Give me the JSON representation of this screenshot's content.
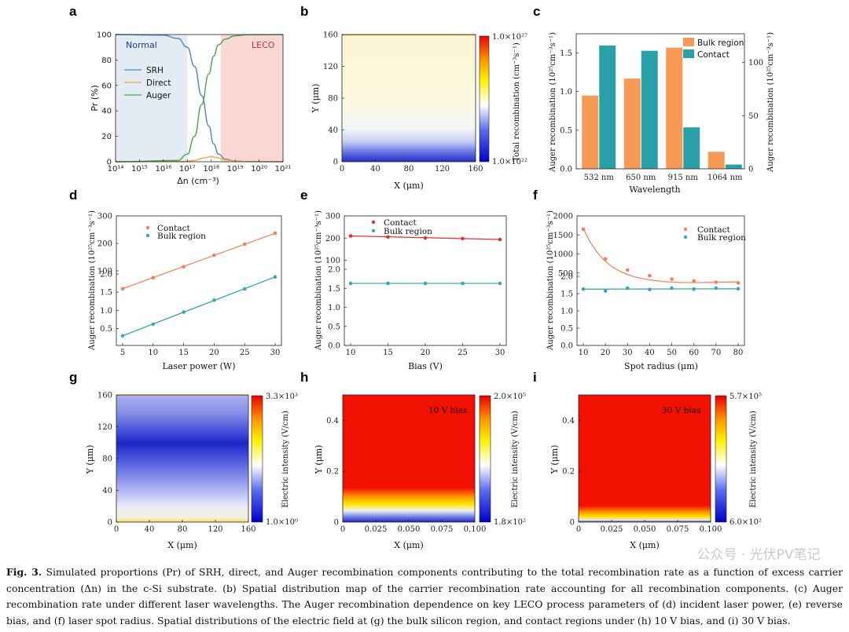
{
  "caption": {
    "label": "Fig. 3.",
    "text": "Simulated proportions (Pr) of SRH, direct, and Auger recombination components contributing to the total recombination rate as a function of excess carrier concentration (Δn) in the c-Si substrate. (b) Spatial distribution map of the carrier recombination rate accounting for all recombination components. (c) Auger recombination rate under different laser wavelengths. The Auger recombination dependence on key LECO process parameters of (d) incident laser power, (e) reverse bias, and (f) laser spot radius. Spatial distributions of the electric field at (g) the bulk silicon region, and contact regions under (h) 10 V bias, and (i) 30 V bias."
  },
  "watermark": "公众号 · 光伏PV笔记",
  "colors": {
    "srh": "#4a86c8",
    "direct": "#f5a04a",
    "auger": "#4aa84a",
    "bulk": "#f79a55",
    "contact": "#2aa0a8",
    "red": "#e53030",
    "normal_bg": "#e3ebf3",
    "leco_bg": "#fad7d3"
  },
  "chart_data": [
    {
      "panel": "a",
      "type": "line",
      "xlabel": "Δn (cm⁻³)",
      "ylabel": "Pr (%)",
      "xscale": "log",
      "xlim_exp": [
        14,
        21
      ],
      "ylim": [
        0,
        100
      ],
      "xtick_labels": [
        "10¹⁴",
        "10¹⁵",
        "10¹⁶",
        "10¹⁷",
        "10¹⁸",
        "10¹⁹",
        "10²⁰",
        "10²¹"
      ],
      "ytick_labels": [
        "0",
        "20",
        "40",
        "60",
        "80",
        "100"
      ],
      "region_labels": {
        "normal": "Normal",
        "leco": "LECO"
      },
      "regions": [
        {
          "name": "Normal",
          "from_exp": 14,
          "to_exp": 17
        },
        {
          "name": "LECO",
          "from_exp": 18.4,
          "to_exp": 21
        }
      ],
      "series": [
        {
          "name": "SRH",
          "log_x": [
            14,
            16,
            16.6,
            17,
            17.3,
            17.6,
            17.9,
            18.1,
            18.3,
            18.6,
            19,
            19.5,
            21
          ],
          "values": [
            100,
            99.5,
            97,
            90,
            75,
            52,
            28,
            14,
            6,
            2,
            0.5,
            0.1,
            0
          ]
        },
        {
          "name": "Direct",
          "log_x": [
            14,
            16.8,
            17.3,
            17.7,
            18,
            18.3,
            18.6,
            19,
            19.5,
            21
          ],
          "values": [
            0,
            0.2,
            1,
            3,
            4,
            3,
            1.5,
            0.5,
            0.1,
            0
          ]
        },
        {
          "name": "Auger",
          "log_x": [
            14,
            16.6,
            17,
            17.3,
            17.6,
            17.9,
            18.1,
            18.3,
            18.6,
            19,
            19.5,
            21
          ],
          "values": [
            0,
            1,
            6,
            20,
            45,
            69,
            83,
            92,
            96.5,
            99,
            99.8,
            100
          ]
        }
      ]
    },
    {
      "panel": "b",
      "type": "heatmap",
      "xlabel": "X (μm)",
      "ylabel": "Y (μm)",
      "xtick_labels": [
        "0",
        "40",
        "80",
        "120",
        "160"
      ],
      "ytick_labels": [
        "0",
        "40",
        "80",
        "120",
        "160"
      ],
      "colorbar": {
        "max_label": "1.0×10²⁷",
        "min_label": "1.0×10²²",
        "label": "Total recombination (cm⁻³s⁻¹)"
      }
    },
    {
      "panel": "c",
      "type": "bar",
      "xlabel": "Wavelength",
      "categories": [
        "532 nm",
        "650 nm",
        "915 nm",
        "1064 nm"
      ],
      "ylabel_left": "Auger recombination (10²⁵cm⁻³s⁻¹)",
      "ylabel_right": "Auger recombination (10²⁵cm⁻³s⁻¹)",
      "ylim_left": [
        0,
        1.75
      ],
      "ylim_right": [
        0,
        127
      ],
      "ytick_labels_left": [
        "0.0",
        "0.5",
        "1.0",
        "1.5"
      ],
      "ytick_labels_right": [
        "0",
        "50",
        "100"
      ],
      "series": [
        {
          "name": "Bulk region",
          "axis": "left",
          "values": [
            0.95,
            1.17,
            1.57,
            0.22
          ]
        },
        {
          "name": "Contact",
          "axis": "right",
          "values": [
            116,
            111,
            39,
            4
          ]
        }
      ]
    },
    {
      "panel": "d",
      "type": "scatter",
      "xlabel": "Laser power (W)",
      "ylabel": "Auger recombination (10²⁵cm⁻³s⁻¹)",
      "xtick_labels": [
        "5",
        "10",
        "15",
        "20",
        "25",
        "30"
      ],
      "ytick_labels": [
        "0.5",
        "1.0",
        "1.5",
        "2.0",
        "100",
        "200",
        "300"
      ],
      "x": [
        5,
        10,
        15,
        20,
        25,
        30
      ],
      "series": [
        {
          "name": "Contact",
          "values": [
            35,
            75,
            115,
            157,
            197,
            237
          ]
        },
        {
          "name": "Bulk region",
          "values": [
            0.3,
            0.62,
            0.95,
            1.28,
            1.59,
            1.92
          ]
        }
      ]
    },
    {
      "panel": "e",
      "type": "scatter",
      "xlabel": "Bias (V)",
      "ylabel": "Auger recombination (10²⁵cm⁻³s⁻¹)",
      "xtick_labels": [
        "10",
        "15",
        "20",
        "25",
        "30"
      ],
      "ytick_labels": [
        "0.0",
        "0.5",
        "1.0",
        "1.5",
        "2.0",
        "100",
        "200",
        "300"
      ],
      "x": [
        10,
        15,
        20,
        25,
        30
      ],
      "series": [
        {
          "name": "Contact",
          "values": [
            210,
            205,
            201,
            198,
            194
          ]
        },
        {
          "name": "Bulk region",
          "values": [
            1.63,
            1.63,
            1.63,
            1.63,
            1.63
          ]
        }
      ]
    },
    {
      "panel": "f",
      "type": "scatter",
      "xlabel": "Spot radius (μm)",
      "ylabel": "Auger recombination (10²⁵cm⁻³s⁻¹)",
      "xtick_labels": [
        "10",
        "20",
        "30",
        "40",
        "50",
        "60",
        "70",
        "80"
      ],
      "ytick_labels": [
        "0.0",
        "0.5",
        "1.0",
        "1.5",
        "2.0",
        "500",
        "1000",
        "1500",
        "2000"
      ],
      "x": [
        10,
        20,
        30,
        40,
        50,
        60,
        70,
        80
      ],
      "series": [
        {
          "name": "Contact",
          "values": [
            1650,
            870,
            580,
            430,
            340,
            290,
            260,
            240
          ]
        },
        {
          "name": "Bulk region",
          "values": [
            1.63,
            1.58,
            1.66,
            1.62,
            1.66,
            1.63,
            1.66,
            1.64
          ]
        }
      ]
    },
    {
      "panel": "g",
      "type": "heatmap",
      "xlabel": "X (μm)",
      "ylabel": "Y (μm)",
      "xtick_labels": [
        "0",
        "40",
        "80",
        "120",
        "160"
      ],
      "ytick_labels": [
        "0",
        "40",
        "80",
        "120",
        "160"
      ],
      "colorbar": {
        "max_label": "3.3×10³",
        "min_label": "1.0×10⁰",
        "label": "Electric intensity (V/cm)"
      }
    },
    {
      "panel": "h",
      "type": "heatmap",
      "annotation": "10 V bias",
      "xlabel": "X (μm)",
      "ylabel": "Y (μm)",
      "xtick_labels": [
        "0",
        "0.025",
        "0.050",
        "0.075",
        "0.100"
      ],
      "ytick_labels": [
        "0",
        "0.2",
        "0.4"
      ],
      "colorbar": {
        "max_label": "2.0×10⁵",
        "min_label": "1.8×10²",
        "label": "Electric intensity (V/cm)"
      }
    },
    {
      "panel": "i",
      "type": "heatmap",
      "annotation": "30 V bias",
      "xlabel": "X (μm)",
      "ylabel": "Y (μm)",
      "xtick_labels": [
        "0",
        "0.025",
        "0.050",
        "0.075",
        "0.100"
      ],
      "ytick_labels": [
        "0",
        "0.2",
        "0.4"
      ],
      "colorbar": {
        "max_label": "5.7×10⁵",
        "min_label": "6.0×10²",
        "label": "Electric intensity (V/cm)"
      }
    }
  ]
}
